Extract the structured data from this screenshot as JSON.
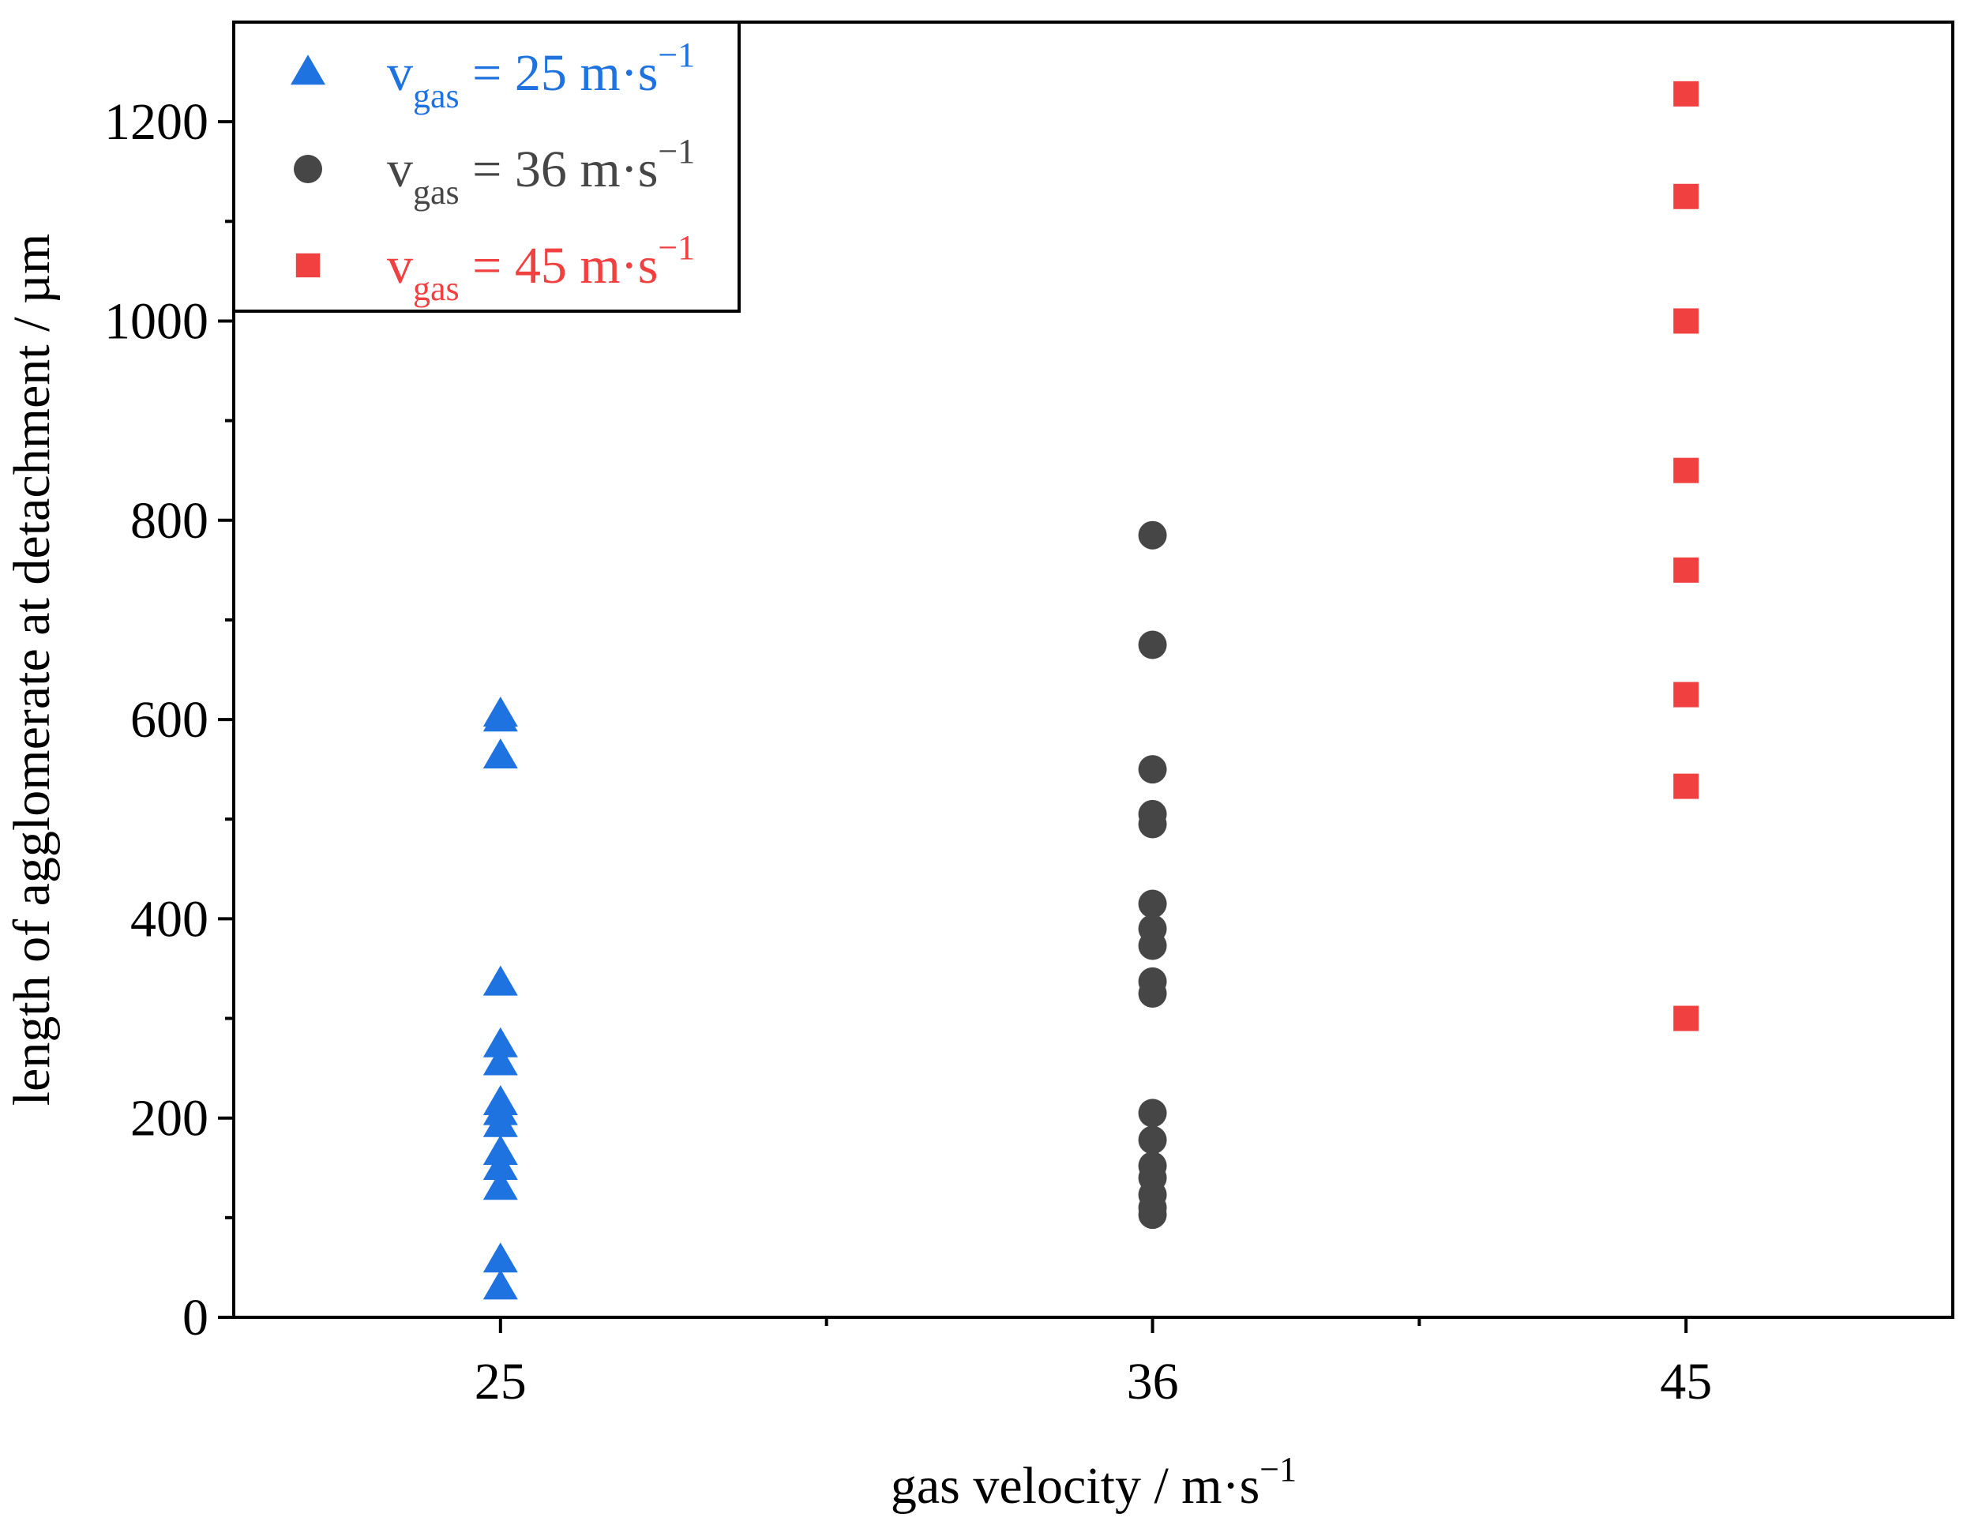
{
  "chart_data": {
    "type": "scatter",
    "title": "",
    "xlabel": "gas velocity / m·s",
    "xlabel_exponent": "−1",
    "ylabel": "length of agglomerate at detachment / µm",
    "ylim": [
      0,
      1300
    ],
    "y_ticks": [
      0,
      200,
      400,
      600,
      800,
      1000,
      1200
    ],
    "x_range": [
      20.5,
      49.5
    ],
    "x_tick_positions": [
      25,
      36,
      45
    ],
    "x_tick_labels": [
      "25",
      "36",
      "45"
    ],
    "x_minor_ticks": [
      30.5,
      40.5
    ],
    "grid": false,
    "legend_position": "top-left",
    "series": [
      {
        "name": "v_gas = 25 m·s^-1",
        "legend": {
          "symbol": "v",
          "subscript": "gas",
          "rest": " = 25 m·s",
          "exponent": "−1"
        },
        "marker": "triangle",
        "color": "#1E73E0",
        "x": 25,
        "values": [
          605,
          600,
          563,
          335,
          273,
          255,
          215,
          205,
          193,
          165,
          150,
          130,
          57,
          30
        ]
      },
      {
        "name": "v_gas = 36 m·s^-1",
        "legend": {
          "symbol": "v",
          "subscript": "gas",
          "rest": " = 36 m·s",
          "exponent": "−1"
        },
        "marker": "circle",
        "color": "#464646",
        "x": 36,
        "values": [
          785,
          675,
          550,
          505,
          495,
          415,
          390,
          373,
          337,
          325,
          205,
          178,
          152,
          140,
          123,
          110,
          103
        ]
      },
      {
        "name": "v_gas = 45 m·s^-1",
        "legend": {
          "symbol": "v",
          "subscript": "gas",
          "rest": " = 45 m·s",
          "exponent": "−1"
        },
        "marker": "square",
        "color": "#F04040",
        "x": 45,
        "values": [
          1228,
          1125,
          1000,
          850,
          750,
          625,
          533,
          300
        ]
      }
    ]
  }
}
